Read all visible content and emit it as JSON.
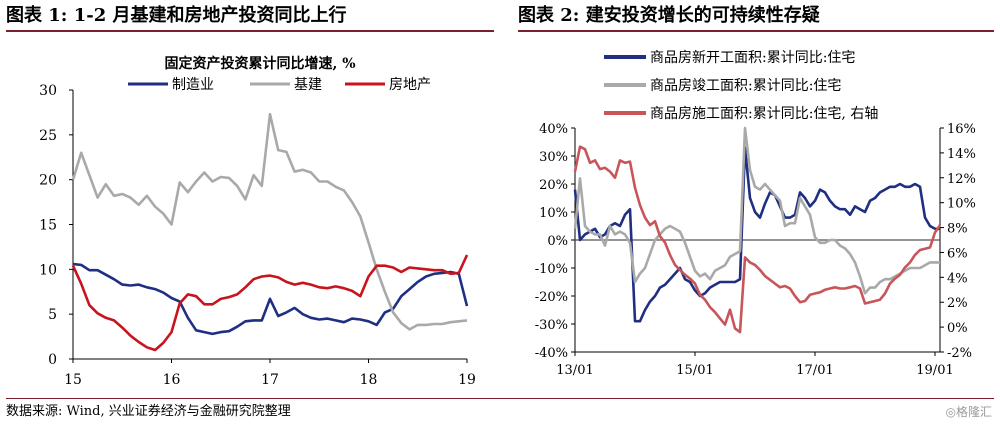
{
  "left_header": {
    "title": "图表 1:  1-2 月基建和房地产投资同比上行"
  },
  "right_header": {
    "title": "图表 2:  建安投资增长的可持续性存疑"
  },
  "footer": {
    "source": "数据来源:  Wind, 兴业证券经济与金融研究院整理",
    "watermark": "◎格隆汇"
  },
  "chart_data": [
    {
      "type": "line",
      "title": "固定资产投资累计同比增速, %",
      "x_tick_labels": [
        "15",
        "16",
        "17",
        "18",
        "19"
      ],
      "x_tick_positions": [
        0,
        12,
        24,
        36,
        48
      ],
      "xlim": [
        0,
        48
      ],
      "ylim": [
        0,
        30
      ],
      "y_ticks": [
        0,
        5,
        10,
        15,
        20,
        25,
        30
      ],
      "legend_position": "top",
      "colors": {
        "制造业": "#1f2f82",
        "基建": "#a9a9a9",
        "房地产": "#c8141e"
      },
      "series": [
        {
          "name": "制造业",
          "x": [
            0,
            1,
            2,
            3,
            4,
            5,
            6,
            7,
            8,
            9,
            10,
            11,
            12,
            13,
            14,
            15,
            16,
            17,
            18,
            19,
            20,
            21,
            22,
            23,
            24,
            25,
            26,
            27,
            28,
            29,
            30,
            31,
            32,
            33,
            34,
            35,
            36,
            37,
            38,
            39,
            40,
            41,
            42,
            43,
            44,
            45,
            46,
            47,
            48
          ],
          "values": [
            10.6,
            10.5,
            9.9,
            9.9,
            9.4,
            8.9,
            8.3,
            8.2,
            8.3,
            8.0,
            7.8,
            7.4,
            6.8,
            6.4,
            4.6,
            3.2,
            3.0,
            2.8,
            3.0,
            3.1,
            3.6,
            4.2,
            4.3,
            4.3,
            6.7,
            4.8,
            5.2,
            5.7,
            5.0,
            4.6,
            4.4,
            4.5,
            4.3,
            4.1,
            4.5,
            4.4,
            4.2,
            3.8,
            5.2,
            5.6,
            7.0,
            7.8,
            8.6,
            9.2,
            9.5,
            9.6,
            9.7,
            9.5,
            5.9
          ]
        },
        {
          "name": "基建",
          "x": [
            0,
            1,
            2,
            3,
            4,
            5,
            6,
            7,
            8,
            9,
            10,
            11,
            12,
            13,
            14,
            15,
            16,
            17,
            18,
            19,
            20,
            21,
            22,
            23,
            24,
            25,
            26,
            27,
            28,
            29,
            30,
            31,
            32,
            33,
            34,
            35,
            36,
            37,
            38,
            39,
            40,
            41,
            42,
            43,
            44,
            45,
            46,
            47,
            48
          ],
          "values": [
            20.0,
            23.0,
            20.5,
            18.0,
            19.5,
            18.2,
            18.4,
            18.0,
            17.2,
            18.2,
            17.0,
            16.2,
            15.0,
            19.7,
            18.6,
            19.8,
            20.8,
            19.8,
            20.3,
            20.2,
            19.3,
            17.8,
            20.5,
            19.3,
            27.3,
            23.3,
            23.1,
            20.9,
            21.1,
            20.8,
            19.8,
            19.8,
            19.2,
            18.8,
            17.5,
            15.9,
            13.0,
            10.0,
            7.5,
            5.2,
            4.0,
            3.3,
            3.8,
            3.8,
            3.9,
            3.9,
            4.1,
            4.2,
            4.3
          ]
        },
        {
          "name": "房地产",
          "x": [
            0,
            1,
            2,
            3,
            4,
            5,
            6,
            7,
            8,
            9,
            10,
            11,
            12,
            13,
            14,
            15,
            16,
            17,
            18,
            19,
            20,
            21,
            22,
            23,
            24,
            25,
            26,
            27,
            28,
            29,
            30,
            31,
            32,
            33,
            34,
            35,
            36,
            37,
            38,
            39,
            40,
            41,
            42,
            43,
            44,
            45,
            46,
            47,
            48
          ],
          "values": [
            10.4,
            8.4,
            6.0,
            5.1,
            4.6,
            4.3,
            3.5,
            2.6,
            1.9,
            1.3,
            1.0,
            1.8,
            3.0,
            6.2,
            7.2,
            7.0,
            6.1,
            6.1,
            6.7,
            6.9,
            7.2,
            8.0,
            8.9,
            9.2,
            9.3,
            9.1,
            8.6,
            8.3,
            8.5,
            8.3,
            8.0,
            7.9,
            8.1,
            7.9,
            7.6,
            7.0,
            9.2,
            10.4,
            10.4,
            10.2,
            9.7,
            10.2,
            10.1,
            10.0,
            9.9,
            9.9,
            9.5,
            9.6,
            11.6
          ]
        }
      ]
    },
    {
      "type": "line",
      "title": "",
      "x_tick_labels": [
        "13/01",
        "15/01",
        "17/01",
        "19/01"
      ],
      "x_tick_positions": [
        0,
        24,
        48,
        72
      ],
      "xlim": [
        0,
        73
      ],
      "ylim": [
        -40,
        40
      ],
      "y_ticks": [
        -40,
        -30,
        -20,
        -10,
        0,
        10,
        20,
        30,
        40
      ],
      "y_tick_labels": [
        "-40%",
        "-30%",
        "-20%",
        "-10%",
        "0%",
        "10%",
        "20%",
        "30%",
        "40%"
      ],
      "y2lim": [
        -2,
        16
      ],
      "y2_ticks": [
        -2,
        0,
        2,
        4,
        6,
        8,
        10,
        12,
        14,
        16
      ],
      "y2_tick_labels": [
        "-2%",
        "0%",
        "2%",
        "4%",
        "6%",
        "8%",
        "10%",
        "12%",
        "14%",
        "16%"
      ],
      "legend_position": "top",
      "colors": {
        "商品房新开工面积:累计同比:住宅": "#1f2f82",
        "商品房竣工面积:累计同比:住宅": "#a9a9a9",
        "商品房施工面积:累计同比:住宅, 右轴": "#c8555a"
      },
      "series": [
        {
          "name": "商品房新开工面积:累计同比:住宅",
          "axis": "left",
          "x": [
            0,
            1,
            2,
            3,
            4,
            5,
            6,
            7,
            8,
            9,
            10,
            11,
            12,
            13,
            14,
            15,
            16,
            17,
            18,
            19,
            20,
            21,
            22,
            23,
            24,
            25,
            26,
            27,
            28,
            29,
            30,
            31,
            32,
            33,
            34,
            35,
            36,
            37,
            38,
            39,
            40,
            41,
            42,
            43,
            44,
            45,
            46,
            47,
            48,
            49,
            50,
            51,
            52,
            53,
            54,
            55,
            56,
            57,
            58,
            59,
            60,
            61,
            62,
            63,
            64,
            65,
            66,
            67,
            68,
            69,
            70,
            71,
            72,
            73
          ],
          "values": [
            18,
            0,
            2,
            3,
            4,
            1,
            2,
            5,
            6,
            5,
            9,
            11,
            -29,
            -29,
            -25,
            -22,
            -20,
            -17,
            -16,
            -14,
            -12,
            -10,
            -14,
            -15,
            -18,
            -20,
            -19,
            -17,
            -16,
            -15,
            -15,
            -15,
            -15,
            -14,
            33,
            15,
            10,
            8,
            13,
            17,
            16,
            12,
            8,
            8,
            9,
            17,
            15,
            12,
            14,
            18,
            17,
            14,
            12,
            11,
            11,
            9,
            12,
            11,
            10,
            14,
            15,
            17,
            18,
            19,
            19,
            20,
            19,
            19,
            20,
            19,
            8,
            5,
            4,
            4
          ]
        },
        {
          "name": "商品房竣工面积:累计同比:住宅",
          "axis": "left",
          "x": [
            0,
            1,
            2,
            3,
            4,
            5,
            6,
            7,
            8,
            9,
            10,
            11,
            12,
            13,
            14,
            15,
            16,
            17,
            18,
            19,
            20,
            21,
            22,
            23,
            24,
            25,
            26,
            27,
            28,
            29,
            30,
            31,
            32,
            33,
            34,
            35,
            36,
            37,
            38,
            39,
            40,
            41,
            42,
            43,
            44,
            45,
            46,
            47,
            48,
            49,
            50,
            51,
            52,
            53,
            54,
            55,
            56,
            57,
            58,
            59,
            60,
            61,
            62,
            63,
            64,
            65,
            66,
            67,
            68,
            69,
            70,
            71,
            72,
            73
          ],
          "values": [
            4,
            22,
            5,
            3,
            2,
            2,
            -2,
            5,
            2,
            3,
            2,
            -1,
            -15,
            -12,
            -10,
            -5,
            0,
            2,
            4,
            5,
            4,
            3,
            -1,
            -6,
            -11,
            -13,
            -12,
            -14,
            -11,
            -10,
            -9,
            -6,
            -5,
            -4,
            40,
            25,
            19,
            18,
            20,
            18,
            16,
            14,
            5,
            6,
            6,
            15,
            12,
            9,
            1,
            -1,
            -1,
            0,
            0,
            -2,
            -3,
            -5,
            -8,
            -13,
            -19,
            -17,
            -17,
            -15,
            -14,
            -14,
            -13,
            -12,
            -11,
            -10,
            -10,
            -10,
            -9,
            -8,
            -8,
            -8
          ]
        },
        {
          "name": "商品房施工面积:累计同比:住宅, 右轴",
          "axis": "right",
          "x": [
            0,
            1,
            2,
            3,
            4,
            5,
            6,
            7,
            8,
            9,
            10,
            11,
            12,
            13,
            14,
            15,
            16,
            17,
            18,
            19,
            20,
            21,
            22,
            23,
            24,
            25,
            26,
            27,
            28,
            29,
            30,
            31,
            32,
            33,
            34,
            35,
            36,
            37,
            38,
            39,
            40,
            41,
            42,
            43,
            44,
            45,
            46,
            47,
            48,
            49,
            50,
            51,
            52,
            53,
            54,
            55,
            56,
            57,
            58,
            59,
            60,
            61,
            62,
            63,
            64,
            65,
            66,
            67,
            68,
            69,
            70,
            71,
            72,
            73
          ],
          "values": [
            12.5,
            14.5,
            14.3,
            13.2,
            13.4,
            12.7,
            12.8,
            12.5,
            12.0,
            13.4,
            13.2,
            13.3,
            11.2,
            9.8,
            8.8,
            8.2,
            8.5,
            7.3,
            6.8,
            5.8,
            5.0,
            4.6,
            4.2,
            3.9,
            3.5,
            2.6,
            2.2,
            1.6,
            1.2,
            0.7,
            0.2,
            1.4,
            -0.1,
            -0.4,
            5.6,
            5.2,
            5.0,
            4.6,
            4.1,
            3.8,
            3.5,
            3.2,
            3.3,
            3.1,
            2.5,
            2.0,
            2.1,
            2.6,
            2.7,
            2.8,
            3.0,
            3.1,
            3.2,
            3.1,
            3.1,
            3.2,
            3.3,
            3.1,
            1.9,
            2.0,
            2.1,
            2.2,
            2.7,
            3.5,
            3.9,
            4.2,
            4.8,
            5.2,
            5.8,
            6.2,
            6.3,
            6.4,
            7.6,
            8.2
          ]
        }
      ]
    }
  ]
}
